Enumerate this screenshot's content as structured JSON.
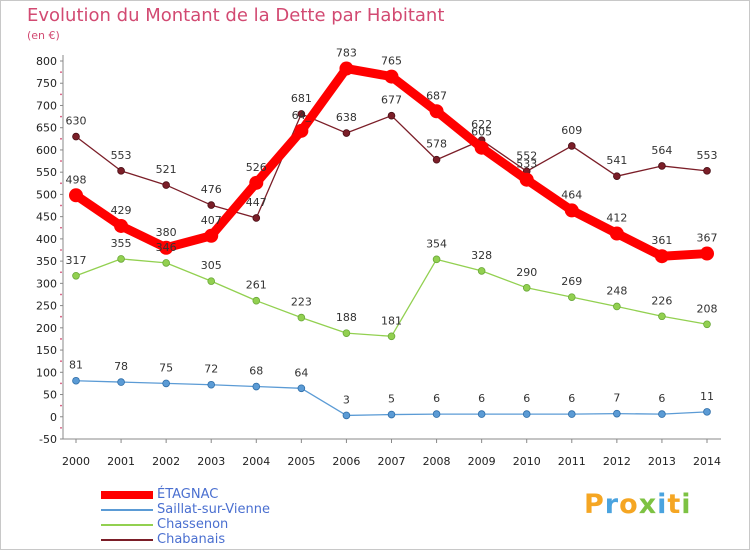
{
  "chart_data": {
    "type": "line",
    "title": "Evolution du Montant de la Dette par Habitant",
    "unit_label": "(en €)",
    "x": [
      "2000",
      "2001",
      "2002",
      "2003",
      "2004",
      "2005",
      "2006",
      "2007",
      "2008",
      "2009",
      "2010",
      "2011",
      "2012",
      "2013",
      "2014"
    ],
    "ylim": [
      -50,
      800
    ],
    "yticks": [
      -50,
      0,
      50,
      100,
      150,
      200,
      250,
      300,
      350,
      400,
      450,
      500,
      550,
      600,
      650,
      700,
      750,
      800
    ],
    "grid": false,
    "legend_position": "bottom-left",
    "series": [
      {
        "name": "ÉTAGNAC",
        "color": "#ff0000",
        "values": [
          498,
          429,
          380,
          407,
          526,
          643,
          783,
          765,
          687,
          605,
          533,
          464,
          412,
          361,
          367
        ],
        "labels": [
          "498",
          "429",
          "380",
          "407",
          "526",
          "64_",
          "783",
          "765",
          "687",
          "605",
          "533",
          "464",
          "412",
          "361",
          "367"
        ]
      },
      {
        "name": "Saillat-sur-Vienne",
        "color": "#5b9bd5",
        "values": [
          81,
          78,
          75,
          72,
          68,
          64,
          3,
          5,
          6,
          6,
          6,
          6,
          7,
          6,
          11
        ],
        "labels": [
          "81",
          "78",
          "75",
          "72",
          "68",
          "64",
          "3",
          "5",
          "6",
          "6",
          "6",
          "6",
          "7",
          "6",
          "11"
        ]
      },
      {
        "name": "Chassenon",
        "color": "#92d050",
        "values": [
          317,
          355,
          346,
          305,
          261,
          223,
          188,
          181,
          354,
          328,
          290,
          269,
          248,
          226,
          208
        ],
        "labels": [
          "317",
          "355",
          "346",
          "305",
          "261",
          "223",
          "188",
          "181",
          "354",
          "328",
          "290",
          "269",
          "248",
          "226",
          "208"
        ]
      },
      {
        "name": "Chabanais",
        "color": "#7b1e28",
        "values": [
          630,
          553,
          521,
          476,
          447,
          681,
          638,
          677,
          578,
          622,
          552,
          609,
          541,
          564,
          553
        ],
        "labels": [
          "630",
          "553",
          "521",
          "476",
          "447",
          "681",
          "638",
          "677",
          "578",
          "622",
          "552",
          "609",
          "541",
          "564",
          "553"
        ]
      }
    ]
  },
  "brand": {
    "letters": [
      {
        "ch": "P",
        "color": "#f5a623"
      },
      {
        "ch": "r",
        "color": "#4aa3df"
      },
      {
        "ch": "o",
        "color": "#f5a623"
      },
      {
        "ch": "x",
        "color": "#7dc243"
      },
      {
        "ch": "i",
        "color": "#4aa3df"
      },
      {
        "ch": "t",
        "color": "#f5a623"
      },
      {
        "ch": "i",
        "color": "#7dc243"
      }
    ]
  }
}
